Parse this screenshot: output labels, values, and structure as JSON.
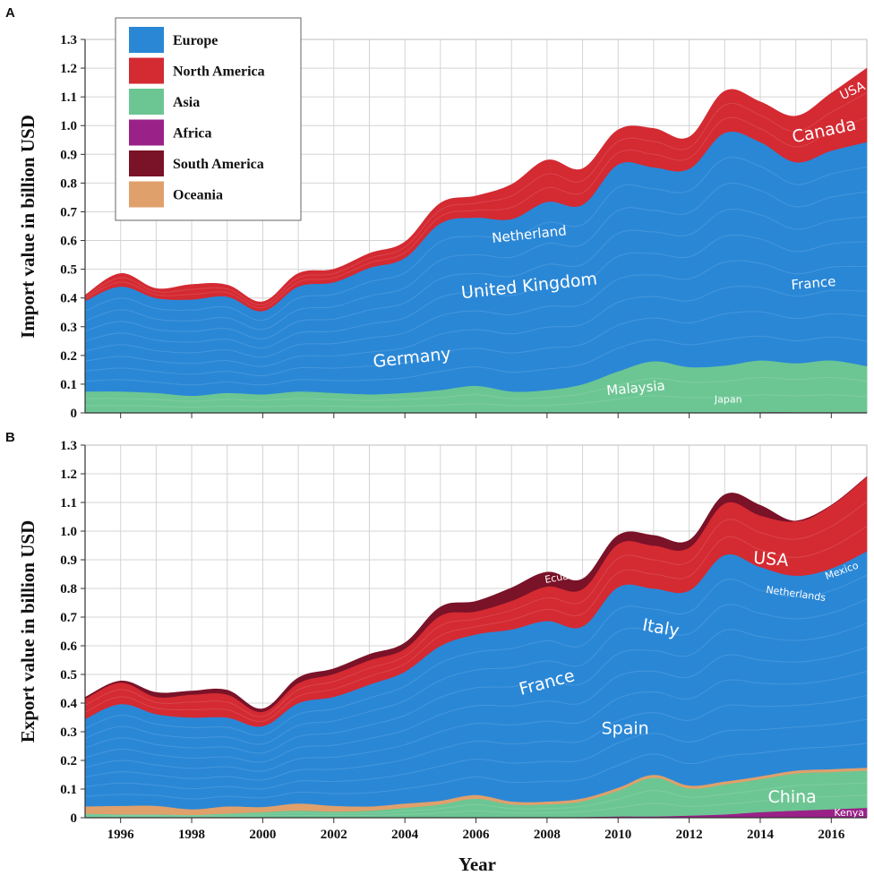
{
  "chart_data": [
    {
      "panel": "A",
      "type": "area",
      "stacked": true,
      "title": "",
      "xlabel": "Year",
      "ylabel": "Import value in billion USD",
      "xlim": [
        1995,
        2017
      ],
      "ylim": [
        0,
        1.3
      ],
      "x": [
        1995,
        1996,
        1997,
        1998,
        1999,
        2000,
        2001,
        2002,
        2003,
        2004,
        2005,
        2006,
        2007,
        2008,
        2009,
        2010,
        2011,
        2012,
        2013,
        2014,
        2015,
        2016,
        2017
      ],
      "series": [
        {
          "name": "Africa",
          "values": [
            0,
            0,
            0,
            0,
            0,
            0,
            0,
            0,
            0,
            0,
            0,
            0,
            0,
            0,
            0,
            0,
            0,
            0,
            0,
            0.003,
            0.003,
            0.003,
            0.003
          ]
        },
        {
          "name": "Asia",
          "values": [
            0.075,
            0.075,
            0.07,
            0.06,
            0.07,
            0.065,
            0.075,
            0.07,
            0.065,
            0.07,
            0.08,
            0.095,
            0.075,
            0.08,
            0.1,
            0.145,
            0.18,
            0.16,
            0.165,
            0.18,
            0.17,
            0.18,
            0.16
          ]
        },
        {
          "name": "Europe",
          "values": [
            0.315,
            0.365,
            0.33,
            0.335,
            0.335,
            0.29,
            0.365,
            0.385,
            0.44,
            0.47,
            0.58,
            0.585,
            0.6,
            0.655,
            0.625,
            0.72,
            0.675,
            0.69,
            0.81,
            0.76,
            0.7,
            0.73,
            0.78
          ]
        },
        {
          "name": "North America",
          "values": [
            0.02,
            0.045,
            0.033,
            0.052,
            0.04,
            0.032,
            0.045,
            0.045,
            0.05,
            0.055,
            0.07,
            0.075,
            0.12,
            0.145,
            0.125,
            0.12,
            0.135,
            0.11,
            0.145,
            0.14,
            0.16,
            0.2,
            0.257
          ]
        },
        {
          "name": "South America",
          "values": [
            0,
            0,
            0,
            0,
            0,
            0,
            0,
            0,
            0,
            0,
            0,
            0,
            0,
            0,
            0,
            0,
            0,
            0,
            0,
            0,
            0,
            0,
            0
          ]
        },
        {
          "name": "Oceania",
          "values": [
            0,
            0,
            0,
            0,
            0,
            0,
            0,
            0,
            0,
            0,
            0,
            0,
            0,
            0,
            0,
            0,
            0,
            0,
            0,
            0,
            0,
            0,
            0
          ]
        }
      ],
      "annotations": [
        {
          "text": "USA",
          "x": 2016.6,
          "y": 1.12,
          "size": "small",
          "rotate": -25
        },
        {
          "text": "Canada",
          "x": 2015.8,
          "y": 0.98,
          "size": "large",
          "rotate": -12
        },
        {
          "text": "Netherland",
          "x": 2007.5,
          "y": 0.62,
          "size": "medium",
          "rotate": -6
        },
        {
          "text": "United Kingdom",
          "x": 2007.5,
          "y": 0.44,
          "size": "large",
          "rotate": -6
        },
        {
          "text": "France",
          "x": 2015.5,
          "y": 0.45,
          "size": "medium",
          "rotate": -5
        },
        {
          "text": "Germany",
          "x": 2004.2,
          "y": 0.19,
          "size": "large",
          "rotate": -6
        },
        {
          "text": "Malaysia",
          "x": 2010.5,
          "y": 0.085,
          "size": "medium",
          "rotate": -5
        },
        {
          "text": "Japan",
          "x": 2013.1,
          "y": 0.045,
          "size": "xsmall",
          "rotate": 0
        }
      ]
    },
    {
      "panel": "B",
      "type": "area",
      "stacked": true,
      "title": "",
      "xlabel": "Year",
      "ylabel": "Export value in billion USD",
      "xlim": [
        1995,
        2017
      ],
      "ylim": [
        0,
        1.3
      ],
      "x": [
        1995,
        1996,
        1997,
        1998,
        1999,
        2000,
        2001,
        2002,
        2003,
        2004,
        2005,
        2006,
        2007,
        2008,
        2009,
        2010,
        2011,
        2012,
        2013,
        2014,
        2015,
        2016,
        2017
      ],
      "series": [
        {
          "name": "Africa",
          "values": [
            0,
            0,
            0,
            0,
            0,
            0,
            0,
            0,
            0,
            0,
            0.002,
            0.002,
            0.002,
            0.002,
            0.003,
            0.005,
            0.005,
            0.008,
            0.012,
            0.02,
            0.025,
            0.03,
            0.035
          ]
        },
        {
          "name": "Asia",
          "values": [
            0.015,
            0.012,
            0.012,
            0.01,
            0.015,
            0.02,
            0.025,
            0.022,
            0.025,
            0.035,
            0.045,
            0.065,
            0.045,
            0.045,
            0.055,
            0.09,
            0.135,
            0.095,
            0.105,
            0.115,
            0.13,
            0.13,
            0.13
          ]
        },
        {
          "name": "Oceania",
          "values": [
            0.025,
            0.03,
            0.03,
            0.02,
            0.025,
            0.018,
            0.025,
            0.02,
            0.015,
            0.015,
            0.013,
            0.013,
            0.01,
            0.01,
            0.01,
            0.01,
            0.01,
            0.01,
            0.01,
            0.01,
            0.01,
            0.01,
            0.01
          ]
        },
        {
          "name": "Europe",
          "values": [
            0.305,
            0.355,
            0.32,
            0.32,
            0.31,
            0.282,
            0.35,
            0.38,
            0.425,
            0.46,
            0.54,
            0.56,
            0.6,
            0.63,
            0.6,
            0.7,
            0.65,
            0.68,
            0.79,
            0.73,
            0.68,
            0.7,
            0.755
          ]
        },
        {
          "name": "North America",
          "values": [
            0.07,
            0.075,
            0.06,
            0.08,
            0.08,
            0.05,
            0.07,
            0.08,
            0.085,
            0.08,
            0.105,
            0.08,
            0.1,
            0.12,
            0.13,
            0.15,
            0.15,
            0.15,
            0.18,
            0.18,
            0.19,
            0.22,
            0.26
          ]
        },
        {
          "name": "South America",
          "values": [
            0.005,
            0.005,
            0.015,
            0.012,
            0.015,
            0.01,
            0.018,
            0.018,
            0.02,
            0.02,
            0.03,
            0.035,
            0.045,
            0.05,
            0.035,
            0.03,
            0.035,
            0.025,
            0.03,
            0.035,
            0.0,
            0.0,
            0.0
          ]
        }
      ],
      "annotations": [
        {
          "text": "USA",
          "x": 2014.3,
          "y": 0.9,
          "size": "large",
          "rotate": 5
        },
        {
          "text": "Mexico",
          "x": 2016.3,
          "y": 0.86,
          "size": "xsmall",
          "rotate": -20
        },
        {
          "text": "Ecuador",
          "x": 2008.5,
          "y": 0.84,
          "size": "xsmall",
          "rotate": -10
        },
        {
          "text": "Netherlands",
          "x": 2015.0,
          "y": 0.78,
          "size": "xsmall",
          "rotate": 8
        },
        {
          "text": "Italy",
          "x": 2011.2,
          "y": 0.66,
          "size": "large",
          "rotate": 10
        },
        {
          "text": "France",
          "x": 2008.0,
          "y": 0.47,
          "size": "large",
          "rotate": -15
        },
        {
          "text": "Spain",
          "x": 2010.2,
          "y": 0.31,
          "size": "large",
          "rotate": 0
        },
        {
          "text": "China",
          "x": 2014.9,
          "y": 0.07,
          "size": "large",
          "rotate": 0
        },
        {
          "text": "Kenya",
          "x": 2016.5,
          "y": 0.015,
          "size": "xsmall",
          "rotate": 0
        }
      ]
    }
  ],
  "panel_labels": [
    "A",
    "B"
  ],
  "x_axis_title": "Year",
  "x_tick_labels": [
    "1996",
    "1998",
    "2000",
    "2002",
    "2004",
    "2006",
    "2008",
    "2010",
    "2012",
    "2014",
    "2016"
  ],
  "y_tick_labels": [
    "0",
    "0.1",
    "0.2",
    "0.3",
    "0.4",
    "0.5",
    "0.6",
    "0.7",
    "0.8",
    "0.9",
    "1.0",
    "1.1",
    "1.2",
    "1.3"
  ],
  "legend": {
    "placement": "top-left",
    "items": [
      {
        "label": "Europe",
        "color": "#2A87D6"
      },
      {
        "label": "North America",
        "color": "#D42A32"
      },
      {
        "label": "Asia",
        "color": "#6CC693"
      },
      {
        "label": "Africa",
        "color": "#9A2188"
      },
      {
        "label": "South America",
        "color": "#7A1228"
      },
      {
        "label": "Oceania",
        "color": "#E0A06B"
      }
    ]
  },
  "colors": {
    "Europe": "#2A87D6",
    "North America": "#D42A32",
    "Asia": "#6CC693",
    "Africa": "#9A2188",
    "South America": "#7A1228",
    "Oceania": "#E0A06B",
    "grid": "#d4d4d4"
  }
}
